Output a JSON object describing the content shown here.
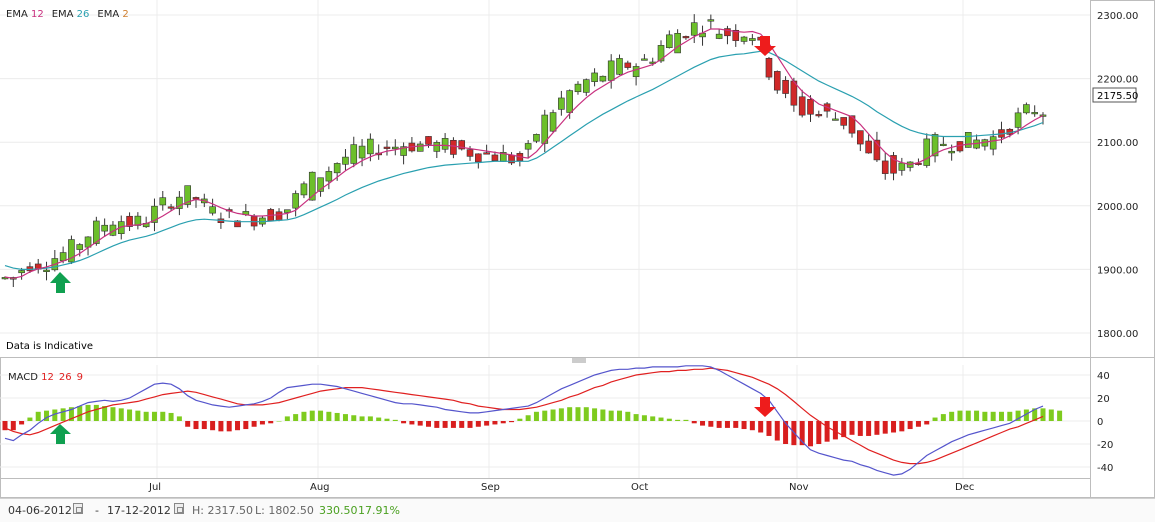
{
  "legend_top": {
    "items": [
      {
        "name": "EMA",
        "param": "12",
        "color": "#c8307f"
      },
      {
        "name": "EMA",
        "param": "26",
        "color": "#2aa0b0"
      },
      {
        "name": "EMA",
        "param": "2",
        "color": "#d08030"
      }
    ]
  },
  "legend_bottom": {
    "name": "MACD",
    "params": [
      {
        "value": "12",
        "color": "#e02020"
      },
      {
        "value": "26",
        "color": "#e02020"
      },
      {
        "value": "9",
        "color": "#e02020"
      }
    ]
  },
  "indicative_note": "Data is Indicative",
  "footer": {
    "start_date": "04-06-2012",
    "dash": "-",
    "end_date": "17-12-2012",
    "high": "H: 2317.50",
    "low": "L: 1802.50",
    "change": "330.50",
    "change_pct": "17.91%"
  },
  "colors": {
    "up_candle": "#6cbf2a",
    "down_candle": "#d02828",
    "ema12": "#c8307f",
    "ema26": "#2aa0b0",
    "macd_line": "#5555cc",
    "signal_line": "#e02020",
    "hist_pos": "#7ecb1e",
    "hist_neg": "#d81e1e",
    "up_arrow": "#10a050",
    "down_arrow": "#ee1c1c"
  },
  "chart_data": [
    {
      "type": "candlestick",
      "yticks": [
        "2300.00",
        "2200.00",
        "2100.00",
        "2000.00",
        "1900.00",
        "1800.00"
      ],
      "ylim": [
        1780,
        2325
      ],
      "xticks": [
        "Jul",
        "Aug",
        "Sep",
        "Oct",
        "Nov",
        "Dec"
      ],
      "current_price": "2175.50",
      "series": [
        {
          "name": "EMA 12",
          "values": [
            1888,
            1886,
            1889,
            1896,
            1901,
            1904,
            1908,
            1913,
            1918,
            1925,
            1934,
            1943,
            1952,
            1960,
            1967,
            1969,
            1970,
            1972,
            1977,
            1984,
            1992,
            2000,
            2006,
            2010,
            2008,
            2003,
            1997,
            1992,
            1988,
            1986,
            1984,
            1984,
            1985,
            1986,
            1988,
            1993,
            2004,
            2015,
            2026,
            2035,
            2045,
            2055,
            2063,
            2071,
            2077,
            2082,
            2086,
            2088,
            2091,
            2093,
            2094,
            2095,
            2095,
            2095,
            2094,
            2092,
            2090,
            2088,
            2086,
            2084,
            2082,
            2080,
            2077,
            2075,
            2085,
            2100,
            2115,
            2130,
            2145,
            2158,
            2170,
            2180,
            2188,
            2196,
            2204,
            2210,
            2214,
            2218,
            2222,
            2230,
            2240,
            2250,
            2258,
            2266,
            2272,
            2278,
            2278,
            2276,
            2274,
            2273,
            2274,
            2270,
            2255,
            2235,
            2215,
            2195,
            2180,
            2170,
            2160,
            2155,
            2150,
            2145,
            2140,
            2128,
            2113,
            2098,
            2084,
            2073,
            2068,
            2065,
            2068,
            2074,
            2082,
            2088,
            2092,
            2095,
            2097,
            2098,
            2100,
            2102,
            2104,
            2110,
            2118,
            2127,
            2135,
            2142
          ]
        },
        {
          "name": "EMA 26",
          "values": [
            1906,
            1902,
            1900,
            1900,
            1901,
            1902,
            1904,
            1907,
            1910,
            1914,
            1919,
            1925,
            1931,
            1937,
            1942,
            1946,
            1949,
            1952,
            1956,
            1961,
            1966,
            1971,
            1975,
            1978,
            1979,
            1978,
            1977,
            1976,
            1975,
            1975,
            1975,
            1975,
            1976,
            1977,
            1978,
            1981,
            1986,
            1992,
            1998,
            2004,
            2010,
            2017,
            2023,
            2029,
            2034,
            2039,
            2043,
            2047,
            2051,
            2054,
            2057,
            2060,
            2062,
            2064,
            2065,
            2066,
            2067,
            2068,
            2069,
            2070,
            2070,
            2070,
            2070,
            2070,
            2075,
            2083,
            2092,
            2101,
            2110,
            2119,
            2128,
            2136,
            2144,
            2151,
            2158,
            2165,
            2171,
            2177,
            2183,
            2190,
            2197,
            2204,
            2211,
            2218,
            2224,
            2230,
            2234,
            2236,
            2238,
            2239,
            2241,
            2243,
            2241,
            2235,
            2228,
            2220,
            2212,
            2204,
            2196,
            2190,
            2184,
            2178,
            2172,
            2165,
            2157,
            2148,
            2140,
            2132,
            2125,
            2119,
            2115,
            2112,
            2110,
            2109,
            2109,
            2109,
            2109,
            2110,
            2111,
            2112,
            2113,
            2115,
            2118,
            2122,
            2126,
            2131
          ]
        }
      ]
    },
    {
      "type": "bar",
      "yticks": [
        "40",
        "20",
        "0",
        "-20",
        "-40"
      ],
      "ylim": [
        -50,
        45
      ],
      "xticks": [
        "Jul",
        "Aug",
        "Sep",
        "Oct",
        "Nov",
        "Dec"
      ],
      "series": [
        {
          "name": "MACD",
          "values": [
            -15,
            -17,
            -12,
            -8,
            -2,
            3,
            6,
            8,
            10,
            13,
            16,
            17,
            18,
            17,
            18,
            20,
            24,
            28,
            32,
            33,
            32,
            28,
            22,
            18,
            16,
            14,
            13,
            12,
            13,
            14,
            15,
            17,
            20,
            25,
            29,
            30,
            31,
            32,
            32,
            31,
            30,
            28,
            26,
            24,
            22,
            20,
            18,
            16,
            15,
            15,
            14,
            13,
            12,
            10,
            9,
            8,
            7,
            7,
            8,
            9,
            10,
            11,
            12,
            13,
            16,
            20,
            24,
            28,
            31,
            34,
            37,
            40,
            42,
            44,
            45,
            45,
            46,
            46,
            47,
            47,
            47,
            47,
            48,
            48,
            48,
            47,
            44,
            40,
            36,
            32,
            28,
            24,
            18,
            8,
            -2,
            -10,
            -18,
            -25,
            -28,
            -30,
            -32,
            -34,
            -35,
            -38,
            -40,
            -43,
            -45,
            -47,
            -46,
            -42,
            -36,
            -30,
            -26,
            -22,
            -18,
            -15,
            -12,
            -10,
            -8,
            -6,
            -4,
            -2,
            2,
            6,
            10,
            13
          ]
        },
        {
          "name": "Signal",
          "values": [
            -6,
            -9,
            -11,
            -12,
            -10,
            -7,
            -4,
            -1,
            2,
            5,
            8,
            10,
            12,
            14,
            15,
            16,
            17,
            19,
            21,
            23,
            24,
            25,
            26,
            25,
            23,
            21,
            19,
            17,
            15,
            14,
            14,
            14,
            15,
            16,
            18,
            20,
            22,
            24,
            26,
            27,
            28,
            29,
            29,
            29,
            28,
            27,
            26,
            25,
            24,
            23,
            22,
            21,
            20,
            19,
            18,
            16,
            15,
            13,
            12,
            11,
            10,
            10,
            10,
            11,
            12,
            14,
            16,
            18,
            21,
            23,
            26,
            29,
            31,
            34,
            36,
            38,
            40,
            41,
            42,
            43,
            43,
            44,
            44,
            45,
            45,
            46,
            45,
            44,
            42,
            40,
            38,
            35,
            32,
            28,
            23,
            17,
            11,
            5,
            0,
            -5,
            -9,
            -13,
            -17,
            -21,
            -25,
            -28,
            -31,
            -34,
            -36,
            -37,
            -37,
            -36,
            -34,
            -31,
            -28,
            -25,
            -22,
            -19,
            -16,
            -13,
            -10,
            -7,
            -5,
            -2,
            1,
            4
          ]
        },
        {
          "name": "Histogram",
          "values": [
            -8,
            -8,
            -3,
            3,
            8,
            9,
            10,
            11,
            12,
            13,
            14,
            14,
            13,
            12,
            11,
            10,
            9,
            8,
            8,
            8,
            7,
            4,
            -5,
            -7,
            -7,
            -8,
            -9,
            -9,
            -8,
            -7,
            -5,
            -3,
            -2,
            0,
            4,
            6,
            8,
            9,
            9,
            8,
            7,
            6,
            5,
            4,
            4,
            3,
            2,
            1,
            -2,
            -3,
            -4,
            -5,
            -6,
            -6,
            -6,
            -6,
            -6,
            -5,
            -4,
            -3,
            -2,
            -1,
            2,
            5,
            8,
            9,
            10,
            11,
            12,
            12,
            12,
            11,
            10,
            9,
            9,
            8,
            6,
            5,
            4,
            3,
            2,
            1,
            1,
            -2,
            -4,
            -5,
            -6,
            -6,
            -6,
            -7,
            -8,
            -10,
            -13,
            -17,
            -20,
            -21,
            -21,
            -22,
            -20,
            -18,
            -16,
            -14,
            -12,
            -13,
            -13,
            -12,
            -11,
            -10,
            -9,
            -7,
            -5,
            -3,
            3,
            6,
            8,
            9,
            9,
            9,
            8,
            8,
            8,
            8,
            9,
            10,
            11,
            11,
            10,
            9
          ]
        }
      ]
    }
  ]
}
